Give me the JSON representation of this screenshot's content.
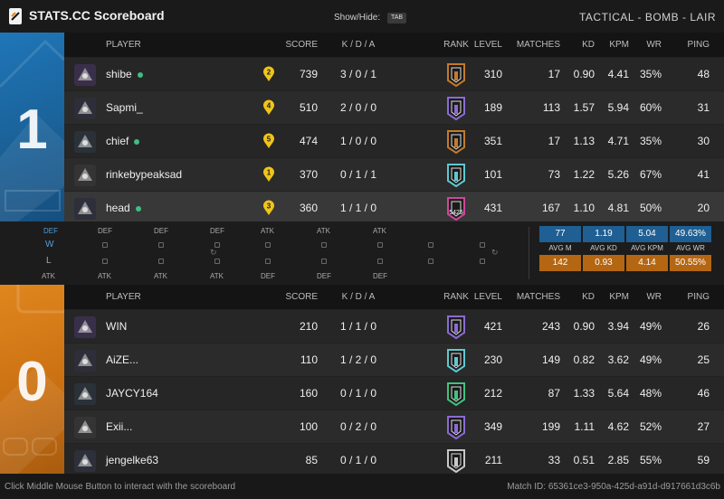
{
  "app": {
    "title": "STATS.CC Scoreboard",
    "show_hide": "Show/Hide:",
    "tab_key": "TAB"
  },
  "mode": "TACTICAL  -  BOMB  -  LAIR",
  "columns": {
    "player": "PLAYER",
    "score": "SCORE",
    "kda": "K / D / A",
    "rank": "RANK",
    "level": "LEVEL",
    "matches": "MATCHES",
    "kd": "KD",
    "kpm": "KPM",
    "wr": "WR",
    "ping": "PING"
  },
  "team1": {
    "number": "1",
    "color": "#1f76b8",
    "players": [
      {
        "name": "shibe",
        "online": true,
        "pin": "2",
        "score": "739",
        "kda": "3 / 0 / 1",
        "rank_color": "#c57a2b",
        "rank_text": "",
        "level": "310",
        "matches": "17",
        "kd": "0.90",
        "kpm": "4.41",
        "wr": "35%",
        "ping": "48"
      },
      {
        "name": "Sapmi_",
        "online": false,
        "pin": "4",
        "score": "510",
        "kda": "2 / 0 / 0",
        "rank_color": "#8c6ad6",
        "rank_text": "",
        "level": "189",
        "matches": "113",
        "kd": "1.57",
        "kpm": "5.94",
        "wr": "60%",
        "ping": "31"
      },
      {
        "name": "chief",
        "online": true,
        "pin": "5",
        "score": "474",
        "kda": "1 / 0 / 0",
        "rank_color": "#c57a2b",
        "rank_text": "",
        "level": "351",
        "matches": "17",
        "kd": "1.13",
        "kpm": "4.71",
        "wr": "35%",
        "ping": "30"
      },
      {
        "name": "rinkebypeaksad",
        "online": false,
        "pin": "1",
        "score": "370",
        "kda": "0 / 1 / 1",
        "rank_color": "#5ec9cf",
        "rank_text": "",
        "level": "101",
        "matches": "73",
        "kd": "1.22",
        "kpm": "5.26",
        "wr": "67%",
        "ping": "41"
      },
      {
        "name": "head",
        "online": true,
        "pin": "3",
        "score": "360",
        "kda": "1 / 1 / 0",
        "rank_color": "#d0459b",
        "rank_text": "5425",
        "level": "431",
        "matches": "167",
        "kd": "1.10",
        "kpm": "4.81",
        "wr": "50%",
        "ping": "20"
      }
    ]
  },
  "team0": {
    "number": "0",
    "color": "#e0861e",
    "players": [
      {
        "name": "WIN",
        "online": false,
        "score": "210",
        "kda": "1 / 1 / 0",
        "rank_color": "#8c6ad6",
        "rank_text": "",
        "level": "421",
        "matches": "243",
        "kd": "0.90",
        "kpm": "3.94",
        "wr": "49%",
        "ping": "26"
      },
      {
        "name": "AiZE...",
        "online": false,
        "score": "110",
        "kda": "1 / 2 / 0",
        "rank_color": "#5ec9cf",
        "rank_text": "",
        "level": "230",
        "matches": "149",
        "kd": "0.82",
        "kpm": "3.62",
        "wr": "49%",
        "ping": "25"
      },
      {
        "name": "JAYCY164",
        "online": false,
        "score": "160",
        "kda": "0 / 1 / 0",
        "rank_color": "#3ec47c",
        "rank_text": "",
        "level": "212",
        "matches": "87",
        "kd": "1.33",
        "kpm": "5.64",
        "wr": "48%",
        "ping": "46"
      },
      {
        "name": "Exii...",
        "online": false,
        "score": "100",
        "kda": "0 / 2 / 0",
        "rank_color": "#8c6ad6",
        "rank_text": "",
        "level": "349",
        "matches": "199",
        "kd": "1.11",
        "kpm": "4.62",
        "wr": "52%",
        "ping": "27"
      },
      {
        "name": "jengelke63",
        "online": false,
        "score": "85",
        "kda": "0 / 1 / 0",
        "rank_color": "#c8c8c8",
        "rank_text": "",
        "level": "211",
        "matches": "33",
        "kd": "0.51",
        "kpm": "2.85",
        "wr": "55%",
        "ping": "59"
      }
    ]
  },
  "rounds": {
    "top": [
      "DEF",
      "DEF",
      "DEF",
      "ATK",
      "ATK",
      "ATK"
    ],
    "bottom": [
      "ATK",
      "ATK",
      "ATK",
      "DEF",
      "DEF",
      "DEF"
    ],
    "w_label": "W",
    "l_label": "L",
    "left_top": "DEF",
    "left_bottom": "ATK"
  },
  "averages": {
    "blue": [
      "77",
      "1.19",
      "5.04",
      "49.63%"
    ],
    "labels": [
      "AVG M",
      "AVG KD",
      "AVG KPM",
      "AVG WR"
    ],
    "orange": [
      "142",
      "0.93",
      "4.14",
      "50.55%"
    ]
  },
  "footer": {
    "hint": "Click Middle Mouse Button to interact with the scoreboard",
    "match_id": "Match ID: 65361ce3-950a-425d-a91d-d917661d3c6b"
  }
}
